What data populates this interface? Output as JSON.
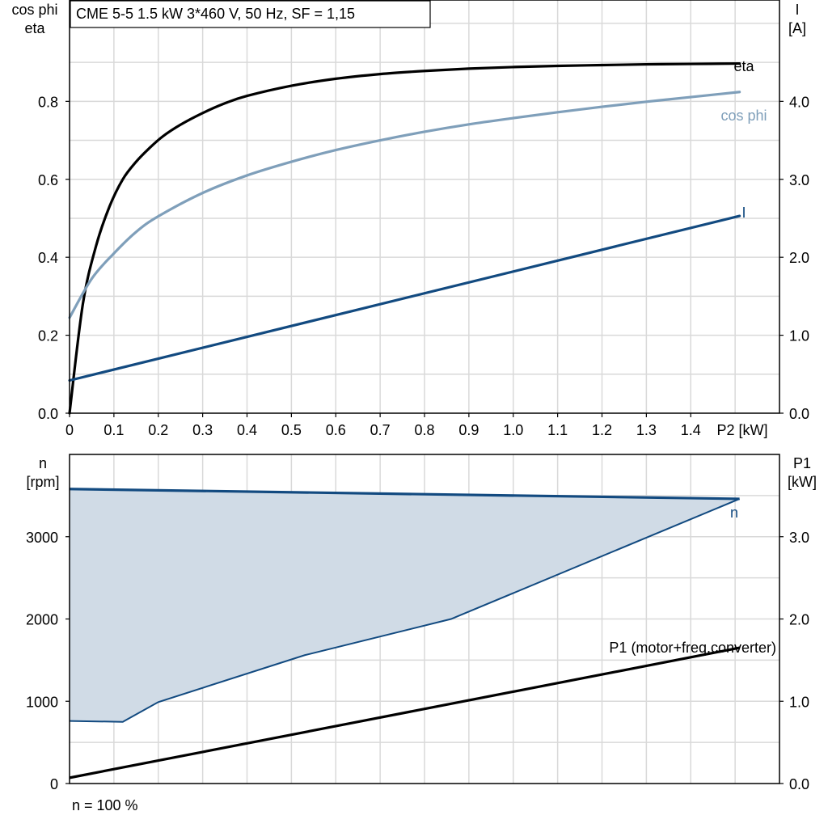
{
  "title": "CME 5-5   1.5 kW   3*460 V, 50 Hz, SF = 1,15",
  "footer": "n = 100 %",
  "colors": {
    "eta": "#000000",
    "cos_phi": "#7f9fba",
    "current": "#124a80",
    "speed": "#124a80",
    "speed_fill": "#d0dbe6",
    "p1": "#000000",
    "grid": "#d9d9d9"
  },
  "chart_data": [
    {
      "type": "line",
      "xlabel": "P2 [kW]",
      "xlim": [
        0,
        1.6
      ],
      "x_ticks": [
        "0",
        "0.1",
        "0.2",
        "0.3",
        "0.4",
        "0.5",
        "0.6",
        "0.7",
        "0.8",
        "0.9",
        "1.0",
        "1.1",
        "1.2",
        "1.3",
        "1.4"
      ],
      "y_left_label": [
        "cos phi",
        "eta"
      ],
      "y_left_lim": [
        0,
        1.06
      ],
      "y_left_ticks": [
        "0.0",
        "0.2",
        "0.4",
        "0.6",
        "0.8"
      ],
      "y_right_label": [
        "I",
        "[A]"
      ],
      "y_right_lim": [
        0,
        5.3
      ],
      "y_right_ticks": [
        "0.0",
        "1.0",
        "2.0",
        "3.0",
        "4.0"
      ],
      "grid": true,
      "series": [
        {
          "name": "eta",
          "axis": "left",
          "x": [
            0,
            0.03,
            0.06,
            0.09,
            0.12,
            0.15,
            0.18,
            0.21,
            0.25,
            0.3,
            0.35,
            0.4,
            0.5,
            0.6,
            0.7,
            0.8,
            0.9,
            1.0,
            1.1,
            1.2,
            1.3,
            1.4,
            1.51
          ],
          "values": [
            0.0,
            0.28,
            0.43,
            0.53,
            0.6,
            0.645,
            0.68,
            0.71,
            0.74,
            0.77,
            0.795,
            0.814,
            0.84,
            0.858,
            0.87,
            0.878,
            0.884,
            0.888,
            0.891,
            0.893,
            0.895,
            0.896,
            0.897
          ]
        },
        {
          "name": "cos phi",
          "axis": "left",
          "x": [
            0,
            0.05,
            0.1,
            0.15,
            0.2,
            0.3,
            0.4,
            0.5,
            0.6,
            0.7,
            0.8,
            0.9,
            1.0,
            1.1,
            1.2,
            1.3,
            1.4,
            1.51
          ],
          "values": [
            0.245,
            0.345,
            0.41,
            0.465,
            0.505,
            0.565,
            0.61,
            0.645,
            0.675,
            0.7,
            0.722,
            0.741,
            0.757,
            0.772,
            0.786,
            0.799,
            0.811,
            0.824
          ]
        },
        {
          "name": "I",
          "axis": "right",
          "x": [
            0,
            1.51
          ],
          "values": [
            0.42,
            2.53
          ]
        }
      ]
    },
    {
      "type": "line",
      "xlim": [
        0,
        1.6
      ],
      "y_left_label": [
        "n",
        "[rpm]"
      ],
      "y_left_lim": [
        0,
        4000
      ],
      "y_left_ticks": [
        "0",
        "1000",
        "2000",
        "3000"
      ],
      "y_right_label": [
        "P1",
        "[kW]"
      ],
      "y_right_lim": [
        0,
        4.0
      ],
      "y_right_ticks": [
        "0.0",
        "1.0",
        "2.0",
        "3.0"
      ],
      "grid": true,
      "series": [
        {
          "name": "n",
          "axis": "left",
          "x": [
            0,
            1.51
          ],
          "values": [
            3580,
            3460
          ]
        },
        {
          "name": "P1 (motor+freq.converter)",
          "axis": "right",
          "x": [
            0,
            1.51
          ],
          "values": [
            0.07,
            1.65
          ]
        }
      ],
      "speed_range_lower": {
        "x": [
          0,
          0.12,
          0.2,
          0.53,
          0.86,
          1.51
        ],
        "values": [
          760,
          750,
          990,
          1560,
          2000,
          3460
        ]
      }
    }
  ]
}
